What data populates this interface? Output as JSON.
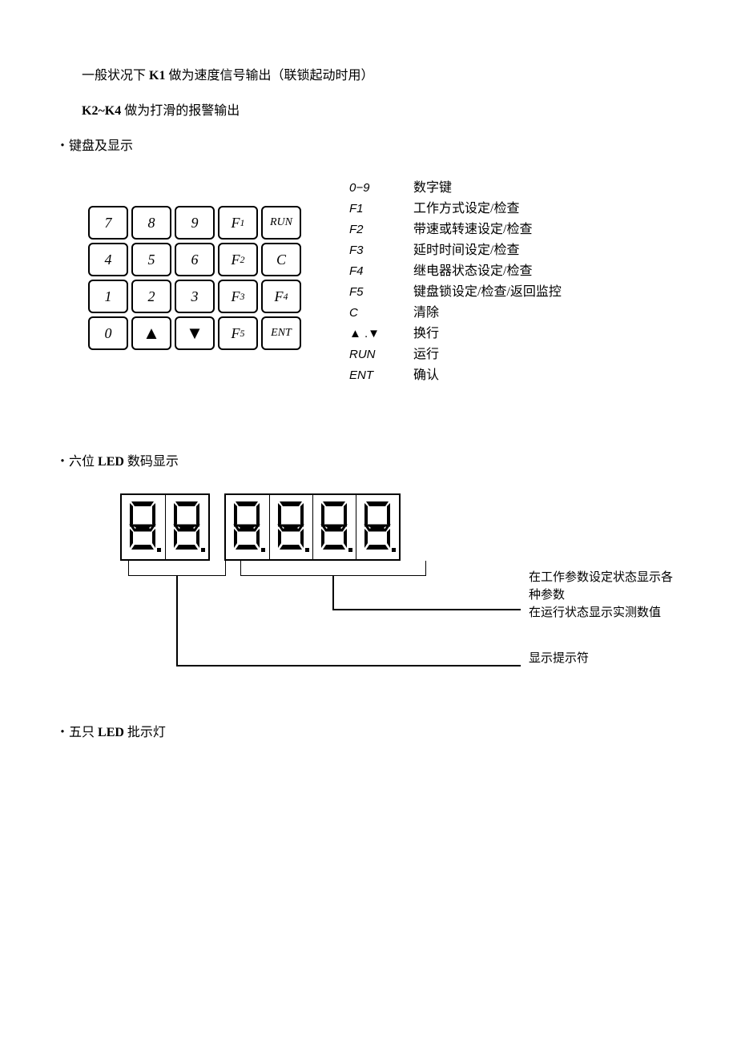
{
  "text": {
    "line1_a": "一般状况下 ",
    "line1_b": "K1",
    "line1_c": " 做为速度信号输出（联锁起动时用）",
    "line2_a": "K2~K4",
    "line2_b": " 做为打滑的报警输出",
    "section1": "・键盘及显示",
    "section2": "・六位 ",
    "section2b": "LED",
    "section2c": " 数码显示",
    "section3": "・五只 ",
    "section3b": "LED",
    "section3c": " 批示灯"
  },
  "keypad": {
    "rows": [
      [
        "7",
        "8",
        "9",
        "F1",
        "RUN"
      ],
      [
        "4",
        "5",
        "6",
        "F2",
        "C"
      ],
      [
        "1",
        "2",
        "3",
        "F3",
        "F4"
      ],
      [
        "0",
        "▲",
        "▼",
        "F5",
        "ENT"
      ]
    ]
  },
  "legend": [
    {
      "k": "0−9",
      "d": "数字键"
    },
    {
      "k": "F1",
      "d": "工作方式设定/检查"
    },
    {
      "k": "F2",
      "d": "带速或转速设定/检查"
    },
    {
      "k": "F3",
      "d": "延时时间设定/检查"
    },
    {
      "k": "F4",
      "d": "继电器状态设定/检查"
    },
    {
      "k": "F5",
      "d": "键盘锁设定/检查/返回监控"
    },
    {
      "k": "C",
      "d": "清除"
    },
    {
      "k": "▲ .▼",
      "d": "换行"
    },
    {
      "k": "RUN",
      "d": "运行"
    },
    {
      "k": "ENT",
      "d": "确认"
    }
  ],
  "led": {
    "group1_digits": 2,
    "group2_digits": 4,
    "callout1_line1": "在工作参数设定状态显示各种参数",
    "callout1_line2": "在运行状态显示实测数值",
    "callout2": "显示提示符"
  },
  "style": {
    "text_color": "#000000",
    "bg_color": "#ffffff",
    "border_color": "#000000",
    "key_border_radius": 6,
    "body_fontsize": 16
  }
}
